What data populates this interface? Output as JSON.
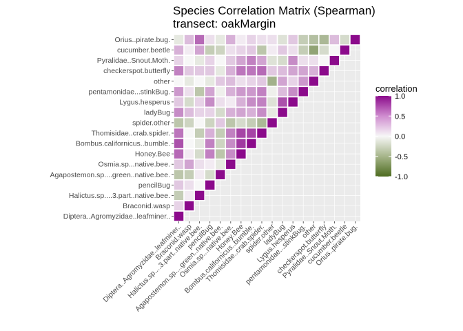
{
  "chart_data": {
    "type": "heatmap",
    "title": "Species Correlation Matrix (Spearman)",
    "subtitle": "transect: oakMargin",
    "legend": {
      "title": "correlation",
      "ticks": [
        "1.0",
        "0.5",
        "0.0",
        "-0.5",
        "-1.0"
      ],
      "tick_values": [
        1.0,
        0.5,
        0.0,
        -0.5,
        -1.0
      ],
      "placement": "right"
    },
    "colors": {
      "low": "#4d6b1f",
      "mid": "#f7f7f7",
      "high": "#8b0a8b",
      "panel": "#ebebeb"
    },
    "value_range": [
      -1,
      1
    ],
    "grid": true,
    "labels": [
      "Diptera..Agromyzidae..leafminer..",
      "Braconid.wasp",
      "Halictus.sp....3.part..native.bee.",
      "pencilBug",
      "Agapostemon.sp....green..native.bee.",
      "Osmia.sp...native.bee.",
      "Honey.Bee",
      "Bombus.californicus..bumble.",
      "Thomisidae..crab.spider.",
      "spider.other",
      "ladyBug",
      "Lygus.hesperus",
      "pentamonidae...stinkBug.",
      "other",
      "checkerspot.butterfly",
      "Pyralidae..Snout.Moth.",
      "cucumber.beetle",
      "Orius..pirate.bug."
    ],
    "matrix": [
      [
        1.0,
        0.15,
        -0.3,
        0.2,
        -0.35,
        0.2,
        0.6,
        0.7,
        0.55,
        -0.35,
        0.45,
        0.2,
        0.4,
        0.0,
        0.5,
        0.15,
        0.3,
        -0.1
      ],
      [
        null,
        1.0,
        0.05,
        0.1,
        -0.3,
        0.35,
        0.05,
        0.0,
        0.0,
        -0.25,
        0.25,
        -0.2,
        0.1,
        -0.1,
        0.2,
        0.0,
        0.05,
        0.25
      ],
      [
        null,
        null,
        1.0,
        0.0,
        0.05,
        0.1,
        -0.2,
        -0.1,
        -0.3,
        0.0,
        0.15,
        0.15,
        -0.35,
        0.0,
        0.2,
        -0.1,
        0.35,
        0.6
      ],
      [
        null,
        null,
        null,
        1.0,
        -0.2,
        0.05,
        0.5,
        0.5,
        0.3,
        -0.25,
        0.15,
        0.45,
        0.35,
        -0.1,
        0.2,
        0.15,
        -0.3,
        0.1
      ],
      [
        null,
        null,
        null,
        null,
        1.0,
        -0.1,
        -0.35,
        -0.25,
        -0.3,
        0.2,
        -0.2,
        0.1,
        -0.05,
        0.2,
        -0.1,
        0.0,
        -0.25,
        -0.1
      ],
      [
        null,
        null,
        null,
        null,
        null,
        1.0,
        0.45,
        0.45,
        0.5,
        -0.35,
        0.3,
        0.05,
        0.3,
        0.25,
        0.3,
        0.2,
        0.1,
        0.3
      ],
      [
        null,
        null,
        null,
        null,
        null,
        null,
        1.0,
        0.8,
        0.75,
        -0.2,
        0.35,
        0.3,
        0.4,
        0.1,
        0.55,
        0.35,
        0.15,
        0.05
      ],
      [
        null,
        null,
        null,
        null,
        null,
        null,
        null,
        1.0,
        0.75,
        -0.3,
        0.3,
        0.45,
        0.4,
        0.15,
        0.55,
        0.5,
        0.2,
        0.15
      ],
      [
        null,
        null,
        null,
        null,
        null,
        null,
        null,
        null,
        1.0,
        -0.45,
        0.45,
        0.5,
        0.5,
        0.2,
        0.6,
        0.35,
        -0.35,
        0.1
      ],
      [
        null,
        null,
        null,
        null,
        null,
        null,
        null,
        null,
        null,
        1.0,
        -0.1,
        -0.15,
        -0.05,
        -0.5,
        0.2,
        -0.15,
        0.05,
        0.1
      ],
      [
        null,
        null,
        null,
        null,
        null,
        null,
        null,
        null,
        null,
        null,
        1.0,
        0.7,
        0.25,
        0.35,
        0.25,
        -0.2,
        0.2,
        -0.15
      ],
      [
        null,
        null,
        null,
        null,
        null,
        null,
        null,
        null,
        null,
        null,
        null,
        1.0,
        0.45,
        0.15,
        0.35,
        0.45,
        0.1,
        0.2
      ],
      [
        null,
        null,
        null,
        null,
        null,
        null,
        null,
        null,
        null,
        null,
        null,
        null,
        1.0,
        0.4,
        0.35,
        0.1,
        -0.3,
        -0.3
      ],
      [
        null,
        null,
        null,
        null,
        null,
        null,
        null,
        null,
        null,
        null,
        null,
        null,
        null,
        1.0,
        0.3,
        0.1,
        -0.6,
        -0.4
      ],
      [
        null,
        null,
        null,
        null,
        null,
        null,
        null,
        null,
        null,
        null,
        null,
        null,
        null,
        null,
        1.0,
        0.0,
        -0.2,
        -0.45
      ],
      [
        null,
        null,
        null,
        null,
        null,
        null,
        null,
        null,
        null,
        null,
        null,
        null,
        null,
        null,
        null,
        1.0,
        0.0,
        0.25
      ],
      [
        null,
        null,
        null,
        null,
        null,
        null,
        null,
        null,
        null,
        null,
        null,
        null,
        null,
        null,
        null,
        null,
        1.0,
        -0.2
      ],
      [
        null,
        null,
        null,
        null,
        null,
        null,
        null,
        null,
        null,
        null,
        null,
        null,
        null,
        null,
        null,
        null,
        null,
        1.0
      ]
    ]
  }
}
